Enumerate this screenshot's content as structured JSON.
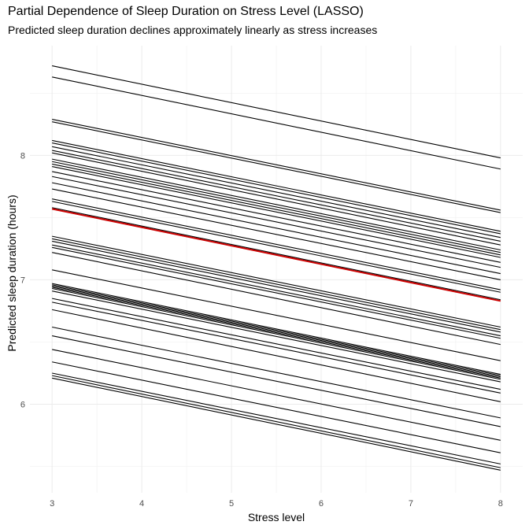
{
  "chart_data": {
    "type": "line",
    "title": "Partial Dependence of Sleep Duration on Stress Level (LASSO)",
    "subtitle": "Predicted sleep duration declines approximately linearly as stress increases",
    "xlabel": "Stress level",
    "ylabel": "Predicted sleep duration (hours)",
    "xlim": [
      3,
      8
    ],
    "ylim": [
      5.45,
      8.72
    ],
    "x_ticks": [
      3,
      4,
      5,
      6,
      7,
      8
    ],
    "y_ticks": [
      6,
      7,
      8
    ],
    "grid": true,
    "x": [
      3,
      8
    ],
    "series_color": "#000000",
    "highlight_color": "#cc0000",
    "average_line": {
      "values": [
        7.57,
        6.83
      ]
    },
    "series": [
      {
        "values": [
          8.72,
          7.98
        ]
      },
      {
        "values": [
          8.63,
          7.89
        ]
      },
      {
        "values": [
          8.29,
          7.56
        ]
      },
      {
        "values": [
          8.27,
          7.54
        ]
      },
      {
        "values": [
          8.12,
          7.39
        ]
      },
      {
        "values": [
          8.1,
          7.37
        ]
      },
      {
        "values": [
          8.07,
          7.34
        ]
      },
      {
        "values": [
          8.04,
          7.31
        ]
      },
      {
        "values": [
          8.02,
          7.28
        ]
      },
      {
        "values": [
          7.97,
          7.24
        ]
      },
      {
        "values": [
          7.95,
          7.22
        ]
      },
      {
        "values": [
          7.93,
          7.2
        ]
      },
      {
        "values": [
          7.91,
          7.18
        ]
      },
      {
        "values": [
          7.87,
          7.14
        ]
      },
      {
        "values": [
          7.83,
          7.1
        ]
      },
      {
        "values": [
          7.78,
          7.05
        ]
      },
      {
        "values": [
          7.73,
          7.0
        ]
      },
      {
        "values": [
          7.65,
          6.92
        ]
      },
      {
        "values": [
          7.63,
          6.9
        ]
      },
      {
        "values": [
          7.58,
          6.84
        ]
      },
      {
        "values": [
          7.35,
          6.62
        ]
      },
      {
        "values": [
          7.33,
          6.6
        ]
      },
      {
        "values": [
          7.31,
          6.58
        ]
      },
      {
        "values": [
          7.28,
          6.55
        ]
      },
      {
        "values": [
          7.26,
          6.53
        ]
      },
      {
        "values": [
          7.22,
          6.48
        ]
      },
      {
        "values": [
          7.08,
          6.35
        ]
      },
      {
        "values": [
          6.97,
          6.24
        ]
      },
      {
        "values": [
          6.96,
          6.23
        ]
      },
      {
        "values": [
          6.95,
          6.22
        ]
      },
      {
        "values": [
          6.94,
          6.21
        ]
      },
      {
        "values": [
          6.93,
          6.2
        ]
      },
      {
        "values": [
          6.91,
          6.18
        ]
      },
      {
        "values": [
          6.85,
          6.12
        ]
      },
      {
        "values": [
          6.82,
          6.09
        ]
      },
      {
        "values": [
          6.76,
          6.02
        ]
      },
      {
        "values": [
          6.62,
          5.89
        ]
      },
      {
        "values": [
          6.55,
          5.82
        ]
      },
      {
        "values": [
          6.44,
          5.71
        ]
      },
      {
        "values": [
          6.34,
          5.61
        ]
      },
      {
        "values": [
          6.25,
          5.52
        ]
      },
      {
        "values": [
          6.23,
          5.49
        ]
      },
      {
        "values": [
          6.21,
          5.47
        ]
      }
    ]
  }
}
